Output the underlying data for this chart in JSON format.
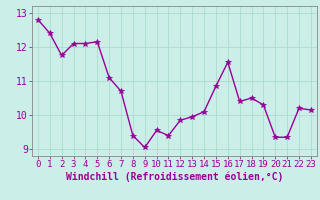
{
  "x": [
    0,
    1,
    2,
    3,
    4,
    5,
    6,
    7,
    8,
    9,
    10,
    11,
    12,
    13,
    14,
    15,
    16,
    17,
    18,
    19,
    20,
    21,
    22,
    23
  ],
  "y": [
    12.8,
    12.4,
    11.75,
    12.1,
    12.1,
    12.15,
    11.1,
    10.7,
    9.4,
    9.05,
    9.55,
    9.4,
    9.85,
    9.95,
    10.1,
    10.85,
    11.55,
    10.4,
    10.5,
    10.3,
    9.35,
    9.35,
    10.2,
    10.15
  ],
  "line_color": "#990099",
  "marker": "*",
  "marker_size": 4,
  "bg_color": "#cceee8",
  "grid_color": "#aaddcc",
  "xlabel": "Windchill (Refroidissement éolien,°C)",
  "ylim": [
    8.8,
    13.2
  ],
  "xlim": [
    -0.5,
    23.5
  ],
  "yticks": [
    9,
    10,
    11,
    12,
    13
  ],
  "xticks": [
    0,
    1,
    2,
    3,
    4,
    5,
    6,
    7,
    8,
    9,
    10,
    11,
    12,
    13,
    14,
    15,
    16,
    17,
    18,
    19,
    20,
    21,
    22,
    23
  ],
  "xlabel_fontsize": 7,
  "tick_fontsize": 6.5,
  "label_color": "#990099",
  "spine_color": "#888888",
  "linewidth": 1.0
}
